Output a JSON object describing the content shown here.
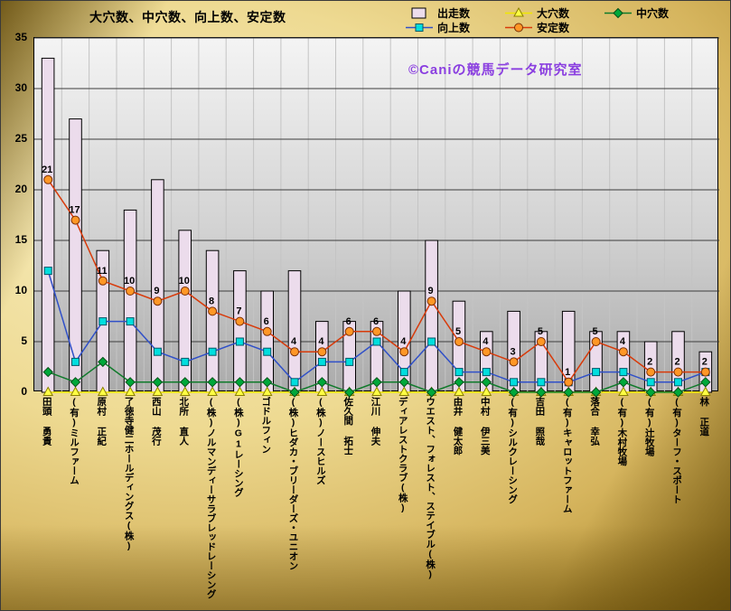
{
  "chart_data": {
    "type": "combo",
    "title": "大穴数、中穴数、向上数、安定数",
    "watermark": "©Caniの競馬データ研究室",
    "ylim": [
      0,
      35
    ],
    "ytick_step": 5,
    "grid": true,
    "legend_rows": [
      [
        "出走数",
        "大穴数",
        "中穴数"
      ],
      [
        "向上数",
        "安定数"
      ]
    ],
    "categories": [
      "田頭 勇貴",
      "(有)ミルファーム",
      "原村 正紀",
      "了徳寺健二ホールディングス(株)",
      "西山 茂行",
      "北所 直人",
      "(株)ノルマンディーサラブレッドレーシング",
      "(株)G1レーシング",
      "ゴドルフィン",
      "(株)ヒダカ・ブリーダーズ・ユニオン",
      "(株)ノースヒルズ",
      "佐久間 拓士",
      "江川 伸夫",
      "ディアレストクラブ(株)",
      "ウエスト、フォレスト、ステイブル(株)",
      "由井 健太郎",
      "中村 伊三美",
      "(有)シルクレーシング",
      "吉田 照哉",
      "(有)キャロットファーム",
      "落合 幸弘",
      "(有)木村牧場",
      "(有)辻牧場",
      "(有)ターフ・スポート",
      "林 正道"
    ],
    "bar_series": {
      "name": "出走数",
      "fill": "#ecdcec",
      "stroke": "#000000",
      "values": [
        33,
        27,
        14,
        18,
        21,
        16,
        14,
        12,
        10,
        12,
        7,
        7,
        7,
        10,
        15,
        9,
        6,
        8,
        6,
        8,
        6,
        6,
        5,
        6,
        4
      ]
    },
    "line_series": [
      {
        "id": "ooana",
        "name": "大穴数",
        "marker": "triangle",
        "line": "#f0e800",
        "fill": "#ffff44",
        "stroke": "#8a8000",
        "show_labels": false,
        "values": [
          0,
          0,
          0,
          0,
          0,
          0,
          0,
          0,
          0,
          0,
          0,
          0,
          0,
          0,
          0,
          0,
          0,
          0,
          0,
          0,
          0,
          0,
          0,
          0,
          0
        ]
      },
      {
        "id": "chuuana",
        "name": "中穴数",
        "marker": "diamond",
        "line": "#0f7a2a",
        "fill": "#00a83a",
        "stroke": "#045018",
        "show_labels": false,
        "values": [
          2,
          1,
          3,
          1,
          1,
          1,
          1,
          1,
          1,
          0,
          1,
          0,
          1,
          1,
          0,
          1,
          1,
          0,
          0,
          0,
          0,
          1,
          0,
          0,
          1
        ]
      },
      {
        "id": "koujou",
        "name": "向上数",
        "marker": "square",
        "line": "#3050c8",
        "fill": "#00dede",
        "stroke": "#005868",
        "show_labels": false,
        "values": [
          12,
          3,
          7,
          7,
          4,
          3,
          4,
          5,
          4,
          1,
          3,
          3,
          5,
          2,
          5,
          2,
          2,
          1,
          1,
          1,
          2,
          2,
          1,
          1,
          2
        ]
      },
      {
        "id": "antei",
        "name": "安定数",
        "marker": "circle",
        "line": "#d83a0a",
        "fill": "#ff9726",
        "stroke": "#7a2e04",
        "show_labels": true,
        "values": [
          21,
          17,
          11,
          10,
          9,
          10,
          8,
          7,
          6,
          4,
          4,
          6,
          6,
          4,
          9,
          5,
          4,
          3,
          5,
          1,
          5,
          4,
          2,
          2,
          2
        ]
      }
    ],
    "colors": {
      "grid_h": "#3c3c3c",
      "grid_v": "#c4c4c4",
      "watermark": "#8a3ee0",
      "data_label": "#000000"
    }
  }
}
